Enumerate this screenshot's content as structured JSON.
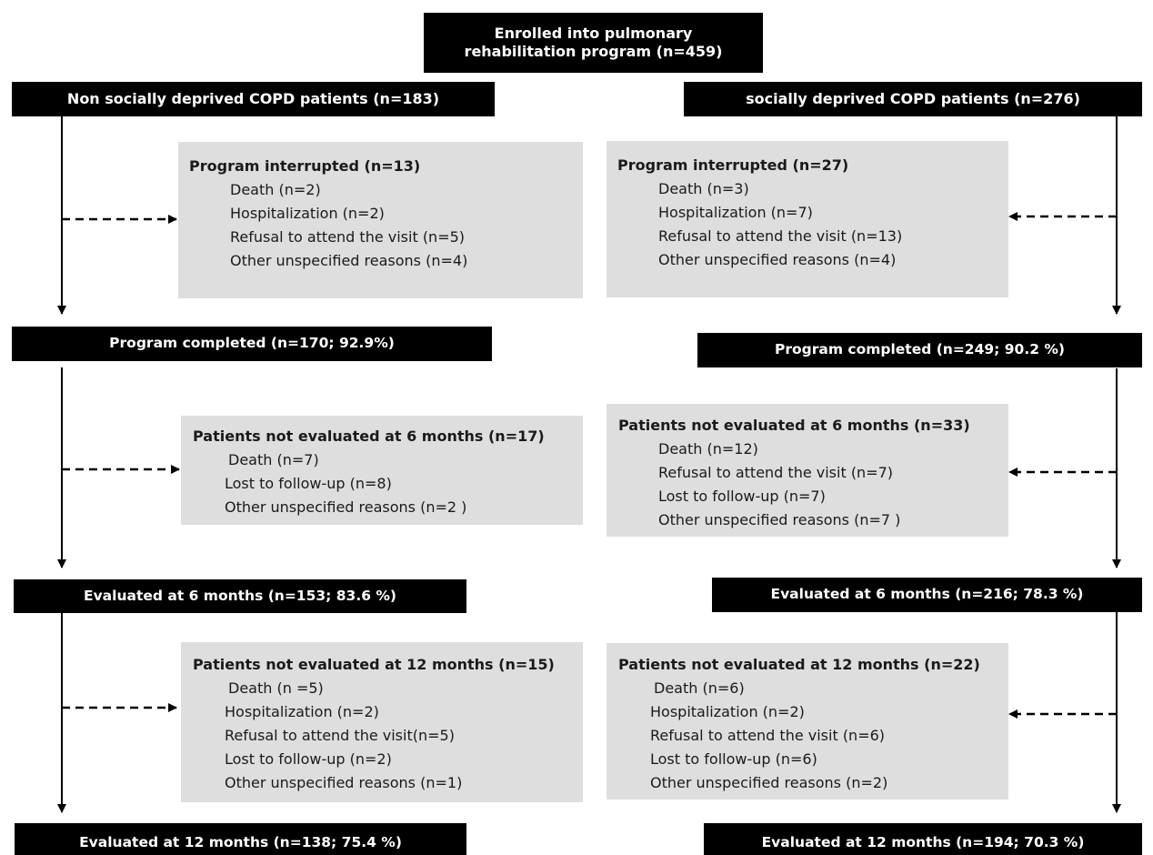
{
  "enrolled": "Enrolled into pulmonary rehabilitation program (n=459)",
  "enrolled_lines": [
    "Enrolled into pulmonary",
    "rehabilitation program (n=459)"
  ],
  "left": {
    "group": "Non socially deprived COPD patients (n=183)",
    "interrupted": {
      "title": "Program interrupted (n=13)",
      "items": [
        "Death  (n=2)",
        "Hospitalization (n=2)",
        "Refusal to attend the visit (n=5)",
        "Other unspecified reasons (n=4)"
      ]
    },
    "completed": "Program completed (n=170; 92.9%)",
    "not_eval_6": {
      "title": "Patients not evaluated at 6 months (n=17)",
      "items": [
        "Death (n=7)",
        "Lost to follow-up (n=8)",
        "Other unspecified reasons  (n=2 )"
      ]
    },
    "eval_6": "Evaluated at 6 months (n=153; 83.6 %)",
    "not_eval_12": {
      "title": "Patients not evaluated at 12 months (n=15)",
      "items": [
        "Death  (n =5)",
        "Hospitalization (n=2)",
        "Refusal to attend the visit(n=5)",
        "Lost to follow-up (n=2)",
        "Other unspecified reasons (n=1)"
      ]
    },
    "eval_12": "Evaluated at 12 months (n=138; 75.4 %)"
  },
  "right": {
    "group": "socially deprived COPD patients (n=276)",
    "interrupted": {
      "title": "Program interrupted (n=27)",
      "items": [
        "Death  (n=3)",
        "Hospitalization (n=7)",
        "Refusal to attend the visit (n=13)",
        "Other unspecified reasons  (n=4)"
      ]
    },
    "completed": "Program completed (n=249; 90.2 %)",
    "not_eval_6": {
      "title": "Patients not evaluated at 6 months (n=33)",
      "items": [
        "Death (n=12)",
        "Refusal to attend the visit (n=7)",
        "Lost to follow-up (n=7)",
        "Other unspecified reasons (n=7 )"
      ]
    },
    "eval_6": "Evaluated at 6 months (n=216; 78.3 %)",
    "not_eval_12": {
      "title": "Patients not evaluated at 12 months (n=22)",
      "items": [
        "Death  (n=6)",
        "Hospitalization (n=2)",
        "Refusal to attend the visit (n=6)",
        "Lost to follow-up (n=6)",
        "Other unspecified reasons (n=2)"
      ]
    },
    "eval_12": "Evaluated at 12 months (n=194; 70.3 %)"
  }
}
